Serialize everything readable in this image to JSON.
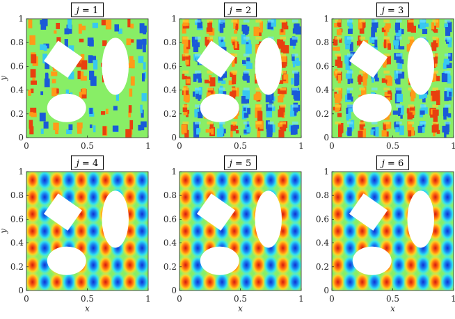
{
  "chart_data": [
    {
      "type": "heatmap",
      "title": "j = 1",
      "mode": 1,
      "xlabel": "",
      "ylabel": "y",
      "xlim": [
        0,
        1
      ],
      "ylim": [
        0,
        1
      ],
      "xticks": [
        "0",
        "0.5",
        "1"
      ],
      "yticks": [
        "0",
        "0.2",
        "0.4",
        "0.6",
        "0.8",
        "1"
      ]
    },
    {
      "type": "heatmap",
      "title": "j = 2",
      "mode": 2,
      "xlabel": "",
      "ylabel": "",
      "xlim": [
        0,
        1
      ],
      "ylim": [
        0,
        1
      ],
      "xticks": [
        "0",
        "0.5",
        "1"
      ],
      "yticks": [
        "0",
        "0.2",
        "0.4",
        "0.6",
        "0.8",
        "1"
      ]
    },
    {
      "type": "heatmap",
      "title": "j = 3",
      "mode": 3,
      "xlabel": "",
      "ylabel": "",
      "xlim": [
        0,
        1
      ],
      "ylim": [
        0,
        1
      ],
      "xticks": [
        "0",
        "0.5",
        "1"
      ],
      "yticks": [
        "0",
        "0.2",
        "0.4",
        "0.6",
        "0.8",
        "1"
      ]
    },
    {
      "type": "heatmap",
      "title": "j = 4",
      "mode": 4,
      "xlabel": "x",
      "ylabel": "y",
      "xlim": [
        0,
        1
      ],
      "ylim": [
        0,
        1
      ],
      "xticks": [
        "0",
        "0.5",
        "1"
      ],
      "yticks": [
        "0",
        "0.2",
        "0.4",
        "0.6",
        "0.8",
        "1"
      ]
    },
    {
      "type": "heatmap",
      "title": "j = 5",
      "mode": 5,
      "xlabel": "x",
      "ylabel": "",
      "xlim": [
        0,
        1
      ],
      "ylim": [
        0,
        1
      ],
      "xticks": [
        "0",
        "0.5",
        "1"
      ],
      "yticks": [
        "0",
        "0.2",
        "0.4",
        "0.6",
        "0.8",
        "1"
      ]
    },
    {
      "type": "heatmap",
      "title": "j = 6",
      "mode": 6,
      "xlabel": "x",
      "ylabel": "",
      "xlim": [
        0,
        1
      ],
      "ylim": [
        0,
        1
      ],
      "xticks": [
        "0",
        "0.5",
        "1"
      ],
      "yticks": [
        "0",
        "0.2",
        "0.4",
        "0.6",
        "0.8",
        "1"
      ]
    }
  ],
  "field": {
    "x_periods": 5,
    "y_periods": 3.5,
    "colormap": "jet",
    "colors": {
      "background": "#88ee66",
      "hot": "#e03a1a",
      "cold": "#1a5ad8",
      "hole": "#ffffff"
    }
  },
  "holes": [
    {
      "shape": "rotated-rectangle",
      "center": [
        0.3,
        0.66
      ],
      "size": [
        0.24,
        0.21
      ],
      "angle_deg": 35
    },
    {
      "shape": "ellipse",
      "center": [
        0.73,
        0.6
      ],
      "radii": [
        0.11,
        0.24
      ]
    },
    {
      "shape": "ellipse",
      "center": [
        0.33,
        0.25
      ],
      "radii": [
        0.16,
        0.12
      ]
    }
  ]
}
